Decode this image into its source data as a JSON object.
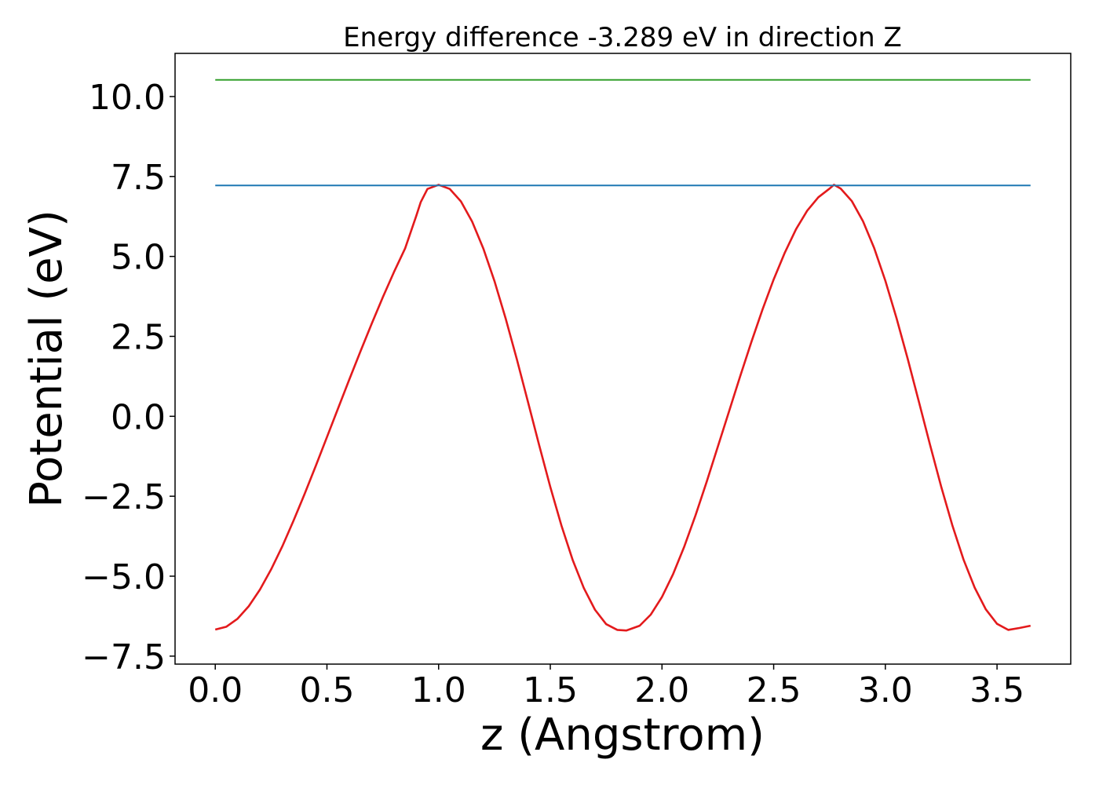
{
  "chart_data": {
    "type": "line",
    "title": "Energy difference -3.289 eV in direction Z",
    "xlabel": "z (Angstrom)",
    "ylabel": "Potential (eV)",
    "xlim": [
      -0.18,
      3.83
    ],
    "ylim": [
      -7.75,
      11.35
    ],
    "xticks": [
      0.0,
      0.5,
      1.0,
      1.5,
      2.0,
      2.5,
      3.0,
      3.5
    ],
    "xtick_labels": [
      "0.0",
      "0.5",
      "1.0",
      "1.5",
      "2.0",
      "2.5",
      "3.0",
      "3.5"
    ],
    "yticks": [
      -7.5,
      -5.0,
      -2.5,
      0.0,
      2.5,
      5.0,
      7.5,
      10.0
    ],
    "ytick_labels": [
      "−7.5",
      "−5.0",
      "−2.5",
      "0.0",
      "2.5",
      "5.0",
      "7.5",
      "10.0"
    ],
    "grid": false,
    "legend": "none",
    "colors": {
      "potential": "#e31a1c",
      "blue_level": "#1f78b4",
      "green_level": "#33a02c"
    },
    "series": [
      {
        "color": "potential",
        "x": [
          0.0,
          0.05,
          0.1,
          0.15,
          0.2,
          0.25,
          0.3,
          0.35,
          0.4,
          0.45,
          0.5,
          0.55,
          0.6,
          0.65,
          0.7,
          0.75,
          0.8,
          0.85,
          0.9,
          0.92,
          0.95,
          1.0,
          1.05,
          1.1,
          1.15,
          1.2,
          1.25,
          1.3,
          1.35,
          1.4,
          1.45,
          1.5,
          1.55,
          1.6,
          1.65,
          1.7,
          1.75,
          1.8,
          1.84,
          1.9,
          1.95,
          2.0,
          2.05,
          2.1,
          2.15,
          2.2,
          2.25,
          2.3,
          2.35,
          2.4,
          2.45,
          2.5,
          2.55,
          2.6,
          2.65,
          2.7,
          2.75,
          2.77,
          2.8,
          2.85,
          2.9,
          2.95,
          3.0,
          3.05,
          3.1,
          3.15,
          3.2,
          3.25,
          3.3,
          3.35,
          3.4,
          3.45,
          3.5,
          3.55,
          3.6,
          3.65
        ],
        "y": [
          -6.67,
          -6.58,
          -6.33,
          -5.94,
          -5.42,
          -4.79,
          -4.07,
          -3.27,
          -2.43,
          -1.55,
          -0.65,
          0.25,
          1.15,
          2.03,
          2.89,
          3.72,
          4.51,
          5.25,
          6.27,
          6.7,
          7.11,
          7.24,
          7.11,
          6.72,
          6.09,
          5.25,
          4.23,
          3.06,
          1.79,
          0.45,
          -0.9,
          -2.21,
          -3.42,
          -4.49,
          -5.37,
          -6.05,
          -6.5,
          -6.68,
          -6.7,
          -6.55,
          -6.2,
          -5.65,
          -4.93,
          -4.07,
          -3.1,
          -2.05,
          -0.95,
          0.15,
          1.25,
          2.32,
          3.34,
          4.28,
          5.12,
          5.85,
          6.43,
          6.85,
          7.12,
          7.24,
          7.12,
          6.73,
          6.1,
          5.26,
          4.24,
          3.07,
          1.8,
          0.46,
          -0.89,
          -2.2,
          -3.41,
          -4.48,
          -5.36,
          -6.04,
          -6.49,
          -6.68,
          -6.62,
          -6.55
        ]
      },
      {
        "color": "blue_level",
        "x": [
          0.0,
          3.65
        ],
        "y": [
          7.22,
          7.22
        ]
      },
      {
        "color": "green_level",
        "x": [
          0.0,
          3.65
        ],
        "y": [
          10.52,
          10.52
        ]
      }
    ]
  }
}
